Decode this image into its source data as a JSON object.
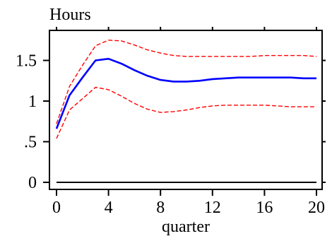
{
  "chart_data": {
    "type": "line",
    "title": "Hours",
    "xlabel": "quarter",
    "ylabel": "",
    "xlim": [
      0,
      20
    ],
    "ylim": [
      0,
      1.8
    ],
    "x_ticks": [
      0,
      4,
      8,
      12,
      16,
      20
    ],
    "x_tick_labels": [
      "0",
      "4",
      "8",
      "12",
      "16",
      "20"
    ],
    "y_ticks": [
      0,
      0.5,
      1,
      1.5
    ],
    "y_tick_labels": [
      "0",
      ".5",
      "1",
      "1.5"
    ],
    "grid": false,
    "legend": "none",
    "x": [
      0,
      1,
      2,
      3,
      4,
      5,
      6,
      7,
      8,
      9,
      10,
      11,
      12,
      13,
      14,
      15,
      16,
      17,
      18,
      19,
      20
    ],
    "series": [
      {
        "role": "point_estimate",
        "color": "#0000ff",
        "style": "solid",
        "values": [
          0.66,
          1.07,
          1.29,
          1.5,
          1.52,
          1.46,
          1.38,
          1.31,
          1.26,
          1.24,
          1.24,
          1.25,
          1.27,
          1.28,
          1.29,
          1.29,
          1.29,
          1.29,
          1.29,
          1.28,
          1.28
        ]
      },
      {
        "role": "upper_bound",
        "color": "#ff0000",
        "style": "dashed",
        "values": [
          0.72,
          1.18,
          1.44,
          1.68,
          1.75,
          1.74,
          1.69,
          1.63,
          1.59,
          1.56,
          1.55,
          1.55,
          1.55,
          1.55,
          1.55,
          1.55,
          1.56,
          1.56,
          1.56,
          1.56,
          1.55
        ]
      },
      {
        "role": "lower_bound",
        "color": "#ff0000",
        "style": "dashed",
        "values": [
          0.54,
          0.89,
          1.03,
          1.17,
          1.14,
          1.06,
          0.97,
          0.9,
          0.86,
          0.87,
          0.89,
          0.92,
          0.94,
          0.95,
          0.95,
          0.95,
          0.95,
          0.94,
          0.93,
          0.93,
          0.93
        ]
      },
      {
        "role": "zero_line",
        "color": "#000000",
        "style": "solid",
        "values": [
          0,
          0,
          0,
          0,
          0,
          0,
          0,
          0,
          0,
          0,
          0,
          0,
          0,
          0,
          0,
          0,
          0,
          0,
          0,
          0,
          0
        ]
      }
    ]
  }
}
